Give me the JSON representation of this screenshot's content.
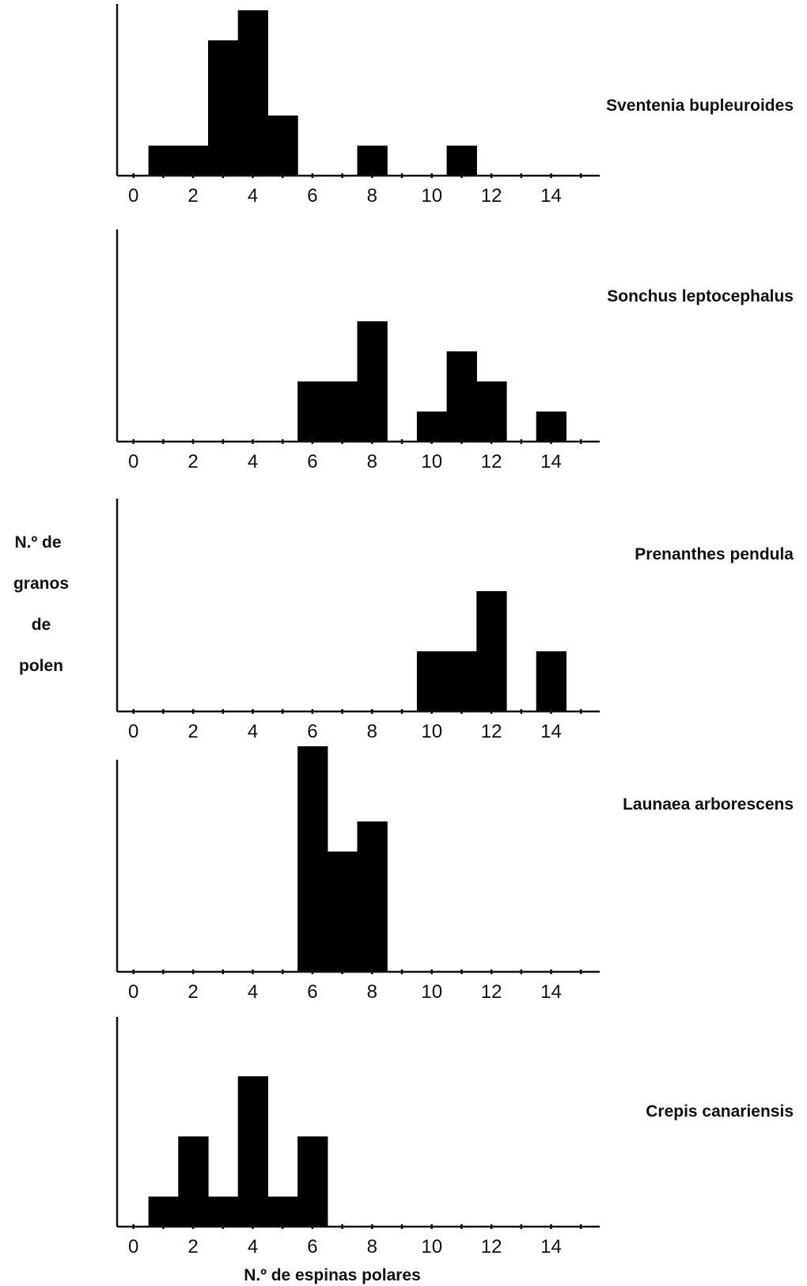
{
  "chart_data": [
    {
      "type": "bar",
      "title": "Sventenia bupleuroides",
      "x": [
        1,
        2,
        3,
        4,
        5,
        8,
        11
      ],
      "values": [
        1,
        1,
        4.5,
        5.5,
        2,
        1,
        1
      ],
      "xticks": [
        "0",
        "2",
        "4",
        "6",
        "8",
        "10",
        "12",
        "14"
      ],
      "xlim": [
        0,
        16
      ]
    },
    {
      "type": "bar",
      "title": "Sonchus leptocephalus",
      "x": [
        6,
        7,
        8,
        10,
        11,
        12,
        14
      ],
      "values": [
        2,
        2,
        4,
        1,
        3,
        2,
        1
      ],
      "xticks": [
        "0",
        "2",
        "4",
        "6",
        "8",
        "10",
        "12",
        "14"
      ],
      "xlim": [
        0,
        16
      ]
    },
    {
      "type": "bar",
      "title": "Prenanthes pendula",
      "x": [
        10,
        11,
        12,
        14
      ],
      "values": [
        2,
        2,
        4,
        2
      ],
      "xticks": [
        "0",
        "2",
        "4",
        "6",
        "8",
        "10",
        "12",
        "14"
      ],
      "xlim": [
        0,
        16
      ]
    },
    {
      "type": "bar",
      "title": "Launaea arborescens",
      "x": [
        6,
        7,
        8
      ],
      "values": [
        7.5,
        4,
        5
      ],
      "xticks": [
        "0",
        "2",
        "4",
        "6",
        "8",
        "10",
        "12",
        "14"
      ],
      "xlim": [
        0,
        16
      ]
    },
    {
      "type": "bar",
      "title": "Crepis canariensis",
      "x": [
        1,
        2,
        3,
        4,
        5,
        6
      ],
      "values": [
        1,
        3,
        1,
        5,
        1,
        3
      ],
      "xticks": [
        "0",
        "2",
        "4",
        "6",
        "8",
        "10",
        "12",
        "14"
      ],
      "xlim": [
        0,
        16
      ]
    }
  ],
  "ylabel_lines": [
    "N.º de",
    "granos",
    "de",
    "polen"
  ],
  "xlabel": "N.º de espinas polares",
  "bar_color": "#000000"
}
